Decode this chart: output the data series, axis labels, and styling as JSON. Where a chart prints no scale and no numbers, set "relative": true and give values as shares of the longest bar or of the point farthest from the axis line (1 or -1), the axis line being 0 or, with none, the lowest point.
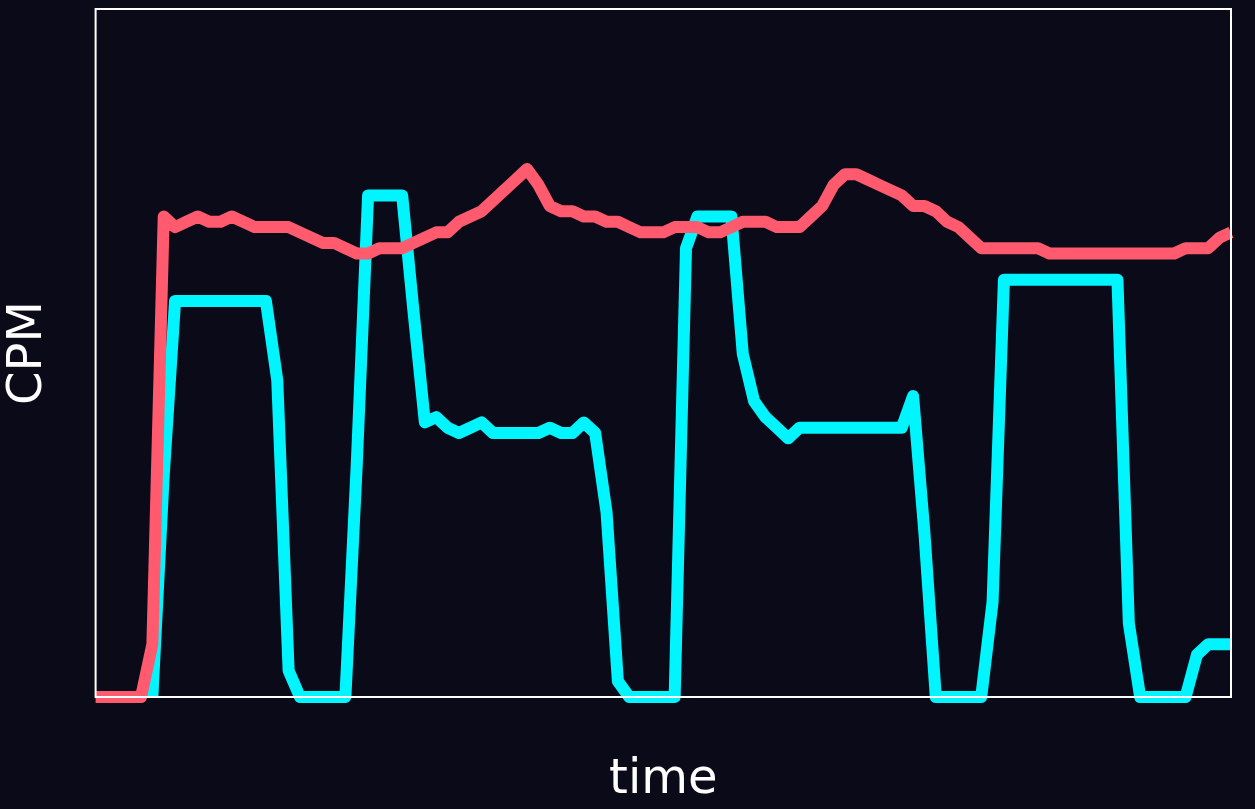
{
  "chart_data": {
    "type": "line",
    "xlabel": "time",
    "ylabel": "CPM",
    "relative": true,
    "legend": false,
    "marker": "none",
    "line_style": "solid",
    "categories": [
      null,
      null,
      null,
      null,
      null,
      null,
      null,
      null,
      null,
      null,
      null,
      null,
      null,
      null,
      null,
      null,
      null,
      null,
      null,
      null,
      null,
      null,
      null,
      null,
      null,
      null,
      null,
      null,
      null,
      null,
      null,
      null,
      null,
      null,
      null,
      null,
      null,
      null,
      null,
      null,
      null,
      null,
      null,
      null,
      null,
      null,
      null,
      null,
      null,
      null,
      null,
      null,
      null,
      null,
      null,
      null,
      null,
      null,
      null,
      null,
      null,
      null,
      null,
      null,
      null,
      null,
      null,
      null,
      null,
      null,
      null,
      null,
      null,
      null,
      null,
      null,
      null,
      null,
      null,
      null,
      null,
      null,
      null,
      null,
      null,
      null,
      null,
      null,
      null,
      null,
      null,
      null,
      null,
      null,
      null,
      null,
      null,
      null,
      null,
      null,
      null
    ],
    "series": [
      {
        "color": "#00f5ff",
        "values": [
          null,
          null,
          null,
          null,
          null,
          0,
          0.42,
          0.75,
          0.75,
          0.75,
          0.75,
          0.75,
          0.75,
          0.75,
          0.75,
          0.75,
          0.6,
          0.05,
          0,
          0,
          0,
          0,
          0,
          0.44,
          0.95,
          0.95,
          0.95,
          0.95,
          0.73,
          0.52,
          0.53,
          0.51,
          0.5,
          0.51,
          0.52,
          0.5,
          0.5,
          0.5,
          0.5,
          0.5,
          0.51,
          0.5,
          0.5,
          0.52,
          0.5,
          0.35,
          0.03,
          0,
          0,
          0,
          0,
          0,
          0.85,
          0.91,
          0.91,
          0.91,
          0.91,
          0.65,
          0.56,
          0.53,
          0.51,
          0.49,
          0.51,
          0.51,
          0.51,
          0.51,
          0.51,
          0.51,
          0.51,
          0.51,
          0.51,
          0.51,
          0.57,
          0.31,
          0,
          0,
          0,
          0,
          0,
          0.18,
          0.79,
          0.79,
          0.79,
          0.79,
          0.79,
          0.79,
          0.79,
          0.79,
          0.79,
          0.79,
          0.79,
          0.14,
          0,
          0,
          0,
          0,
          0,
          0.08,
          0.1,
          0.1,
          0.1
        ]
      },
      {
        "color": "#ff5a6e",
        "values": [
          0,
          0,
          0,
          0,
          0,
          0.1,
          0.91,
          0.89,
          0.9,
          0.91,
          0.9,
          0.9,
          0.91,
          0.9,
          0.89,
          0.89,
          0.89,
          0.89,
          0.88,
          0.87,
          0.86,
          0.86,
          0.85,
          0.84,
          0.84,
          0.85,
          0.85,
          0.85,
          0.86,
          0.87,
          0.88,
          0.88,
          0.9,
          0.91,
          0.92,
          0.94,
          0.96,
          0.98,
          1,
          0.97,
          0.93,
          0.92,
          0.92,
          0.91,
          0.91,
          0.9,
          0.9,
          0.89,
          0.88,
          0.88,
          0.88,
          0.89,
          0.89,
          0.89,
          0.88,
          0.88,
          0.89,
          0.9,
          0.9,
          0.9,
          0.89,
          0.89,
          0.89,
          0.91,
          0.93,
          0.97,
          0.99,
          0.99,
          0.98,
          0.97,
          0.96,
          0.95,
          0.93,
          0.93,
          0.92,
          0.9,
          0.89,
          0.87,
          0.85,
          0.85,
          0.85,
          0.85,
          0.85,
          0.85,
          0.84,
          0.84,
          0.84,
          0.84,
          0.84,
          0.84,
          0.84,
          0.84,
          0.84,
          0.84,
          0.84,
          0.84,
          0.85,
          0.85,
          0.85,
          0.87,
          0.88
        ]
      }
    ]
  }
}
